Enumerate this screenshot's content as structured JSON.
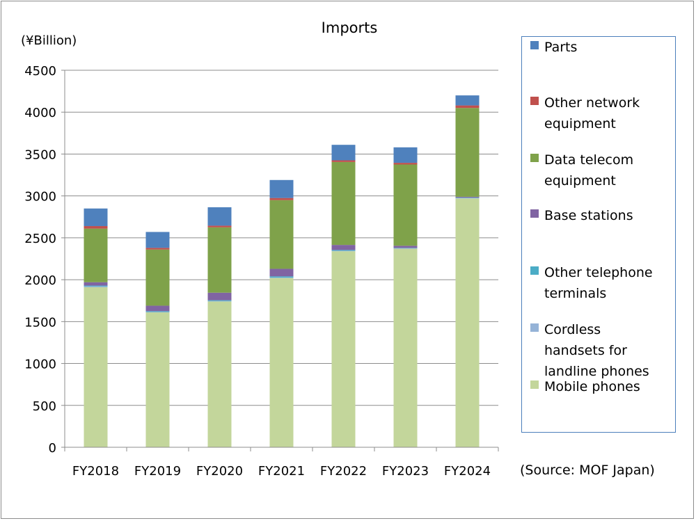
{
  "chart_data": {
    "type": "bar",
    "stacked": true,
    "title": "Imports",
    "unit_label": "(¥Billion)",
    "source": "(Source: MOF Japan)",
    "categories": [
      "FY2018",
      "FY2019",
      "FY2020",
      "FY2021",
      "FY2022",
      "FY2023",
      "FY2024"
    ],
    "ylim": [
      0,
      4500
    ],
    "yticks": [
      0,
      500,
      1000,
      1500,
      2000,
      2500,
      3000,
      3500,
      4000,
      4500
    ],
    "grid": true,
    "legend_position": "right",
    "series": [
      {
        "name": "Mobile phones",
        "color": "#c3d69b",
        "values": [
          1910,
          1610,
          1740,
          2020,
          2340,
          2370,
          2970
        ]
      },
      {
        "name": "Cordless\nhandsets for\nlandline phones",
        "color": "#95b3d7",
        "values": [
          10,
          5,
          5,
          5,
          5,
          5,
          5
        ]
      },
      {
        "name": "Other telephone\nterminals",
        "color": "#4bacc6",
        "values": [
          10,
          10,
          10,
          15,
          10,
          5,
          5
        ]
      },
      {
        "name": "Base stations",
        "color": "#8064a2",
        "values": [
          40,
          65,
          90,
          90,
          60,
          25,
          10
        ]
      },
      {
        "name": "Data telecom\nequipment",
        "color": "#7fa24a",
        "values": [
          640,
          670,
          780,
          820,
          990,
          970,
          1060
        ]
      },
      {
        "name": "Other network\nequipment",
        "color": "#c0504d",
        "values": [
          30,
          20,
          20,
          25,
          20,
          20,
          30
        ]
      },
      {
        "name": "Parts",
        "color": "#4f81bd",
        "values": [
          210,
          190,
          220,
          215,
          185,
          185,
          120
        ]
      }
    ]
  }
}
